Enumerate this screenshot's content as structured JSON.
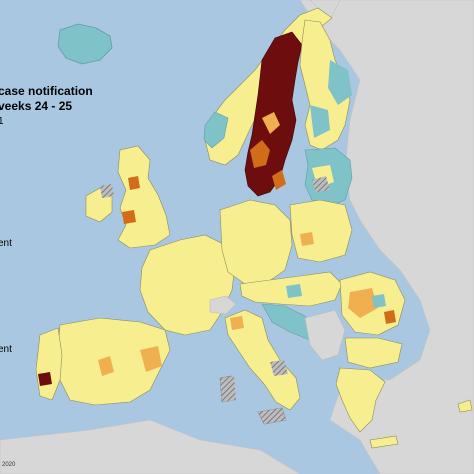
{
  "title": {
    "line1": "case notification",
    "line2": "veeks 24 - 25"
  },
  "legend_fragments": [
    "1",
    "ent",
    "ent"
  ],
  "credit": "2020",
  "colors": {
    "sea": "#a9c7e0",
    "non_eu_land": "#d7d7d7",
    "level_low": "#f7ef8f",
    "level_teal": "#7fc2c8",
    "level_mid": "#f1b04f",
    "level_high": "#d26c18",
    "level_very_high": "#6e0d0d",
    "no_data": "#9a9a9a",
    "borders": "#8c8c5a"
  },
  "regions": [
    {
      "name": "Iceland",
      "level": "teal"
    },
    {
      "name": "Norway",
      "level": "low"
    },
    {
      "name": "Sweden",
      "level": "very_high"
    },
    {
      "name": "Finland",
      "level": "teal"
    },
    {
      "name": "Baltics",
      "level": "teal"
    },
    {
      "name": "Ireland",
      "level": "low"
    },
    {
      "name": "United Kingdom",
      "level": "low"
    },
    {
      "name": "France",
      "level": "low"
    },
    {
      "name": "Spain",
      "level": "low"
    },
    {
      "name": "Portugal",
      "level": "low"
    },
    {
      "name": "Germany",
      "level": "low"
    },
    {
      "name": "Poland",
      "level": "low"
    },
    {
      "name": "Italy",
      "level": "low"
    },
    {
      "name": "Romania",
      "level": "mid"
    },
    {
      "name": "Greece",
      "level": "low"
    },
    {
      "name": "Croatia",
      "level": "teal"
    }
  ]
}
